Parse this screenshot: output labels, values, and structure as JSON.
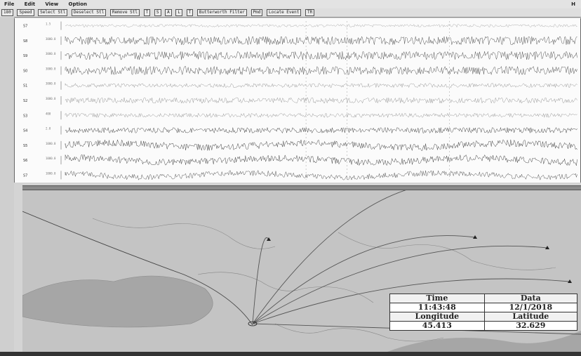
{
  "menu": {
    "items": [
      "File",
      "Edit",
      "View",
      "Option"
    ],
    "help_label": "H"
  },
  "toolbar": {
    "buttons": [
      "180",
      "Speed",
      "Select Stl",
      "Deselect Stl",
      "Remove Stl",
      "T",
      "S",
      "A",
      "L",
      "T",
      "Butterworth Filter",
      "Pmd",
      "Locate Event",
      "TR"
    ]
  },
  "waveforms": {
    "channels": [
      {
        "code": "S7",
        "amp": 2,
        "color": "#aaaaaa",
        "amp_label": "1.5"
      },
      {
        "code": "S8",
        "amp": 6,
        "color": "#555555",
        "amp_label": "3000.0"
      },
      {
        "code": "S9",
        "amp": 6,
        "color": "#555555",
        "amp_label": "3000.0"
      },
      {
        "code": "S0",
        "amp": 6,
        "color": "#555555",
        "amp_label": "3000.0"
      },
      {
        "code": "S1",
        "amp": 3,
        "color": "#999999",
        "amp_label": "3000.0"
      },
      {
        "code": "S2",
        "amp": 4,
        "color": "#999999",
        "amp_label": "3000.0"
      },
      {
        "code": "S3",
        "amp": 3,
        "color": "#999999",
        "amp_label": "400"
      },
      {
        "code": "S4",
        "amp": 4,
        "color": "#444444",
        "amp_label": "2.8"
      },
      {
        "code": "S5",
        "amp": 5,
        "color": "#444444",
        "amp_label": "1000.0"
      },
      {
        "code": "S6",
        "amp": 5,
        "color": "#444444",
        "amp_label": "1000.0"
      },
      {
        "code": "S7",
        "amp": 4,
        "color": "#555555",
        "amp_label": "1000.0"
      }
    ],
    "pick_markers": [
      0.75,
      0.47,
      0.55
    ]
  },
  "map": {
    "land_color": "#c4c4c4",
    "sea_color": "#a6a6a6",
    "line_color": "#555555"
  },
  "event": {
    "time_label": "Time",
    "date_label": "Data",
    "time": "11:43:48",
    "date": "12/1/2018",
    "longitude_label": "Longitude",
    "latitude_label": "Latitude",
    "longitude": "45.413",
    "latitude": "32.629"
  }
}
